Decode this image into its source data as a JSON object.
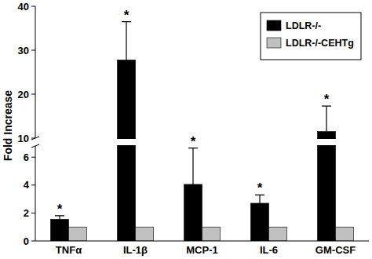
{
  "chart_data": {
    "type": "bar",
    "y_label": "Fold Increase",
    "categories": [
      "TNFα",
      "IL-1β",
      "MCP-1",
      "IL-6",
      "GM-CSF"
    ],
    "series": [
      {
        "name": "LDLR-/-",
        "color": "#000000",
        "values": [
          1.55,
          27.8,
          4.05,
          2.7,
          11.5
        ],
        "errors": [
          0.25,
          8.7,
          2.6,
          0.6,
          5.8
        ],
        "significance": [
          "*",
          "*",
          "*",
          "*",
          "*"
        ]
      },
      {
        "name": "LDLR-/-CEHTg",
        "color": "#c0c0c0",
        "values": [
          1,
          1,
          1,
          1,
          1
        ]
      }
    ],
    "ylim": [
      0,
      40
    ],
    "y_break": [
      6.8,
      10
    ],
    "yticks": [
      0,
      2,
      4,
      6,
      10,
      20,
      30,
      40
    ],
    "legend": "upper right",
    "grid": false
  }
}
